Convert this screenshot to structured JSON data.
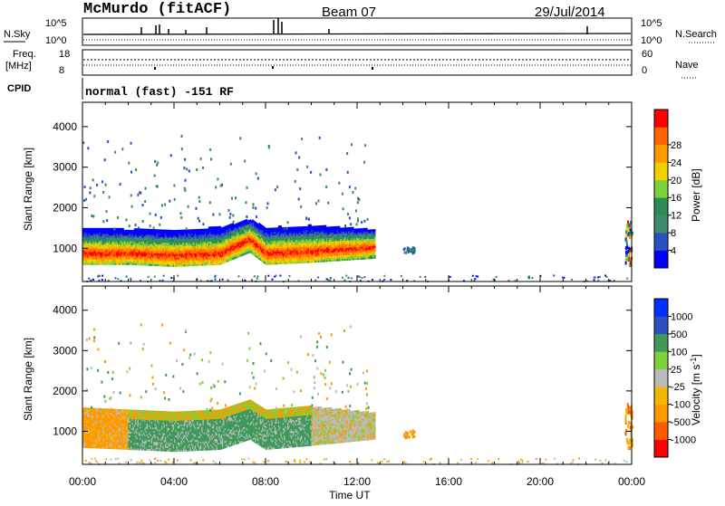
{
  "header": {
    "station": "McMurdo (fitACF)",
    "beam": "Beam 07",
    "date": "29/Jul/2014"
  },
  "top_panel": {
    "left_label": "N.Sky",
    "right_label": "N.Search",
    "left_ticks": [
      "10^5",
      "10^0"
    ],
    "right_ticks": [
      "10^5",
      "10^0"
    ]
  },
  "freq_panel": {
    "left_label_1": "Freq.",
    "left_label_2": "[MHz]",
    "left_ticks": [
      "18",
      "8"
    ],
    "right_label": "Nave",
    "right_ticks": [
      "60",
      "0"
    ]
  },
  "cpid": {
    "label": "CPID",
    "value": "normal (fast) -151 RF"
  },
  "axes": {
    "ylabel": "Slant Range [km]",
    "xlabel": "Time UT",
    "y_ticks": [
      "1000",
      "2000",
      "3000",
      "4000"
    ],
    "x_ticks": [
      "00:00",
      "04:00",
      "08:00",
      "12:00",
      "16:00",
      "20:00",
      "00:00"
    ]
  },
  "colors": {
    "power": [
      "#0000ff",
      "#2a4fbf",
      "#3f8a6a",
      "#2e8b57",
      "#7dd13a",
      "#f2d000",
      "#ff9900",
      "#ff6600",
      "#ff0000"
    ],
    "velocity": [
      "#ff0000",
      "#ff5a00",
      "#ff9900",
      "#f2b800",
      "#bbbbbb",
      "#7dd13a",
      "#3f9a5a",
      "#2a4fbf",
      "#0030ff"
    ]
  },
  "chart_data": [
    {
      "type": "heatmap",
      "panel": "power",
      "x_range_hours": [
        0,
        24
      ],
      "y_range_km": [
        180,
        4600
      ],
      "colorbar": {
        "label": "Power [dB]",
        "ticks": [
          "4",
          "8",
          "12",
          "16",
          "20",
          "24",
          "28"
        ],
        "range": [
          0,
          30
        ]
      },
      "main_band": [
        {
          "t": 0.0,
          "low": 600,
          "high": 1500,
          "peak": 850
        },
        {
          "t": 2.0,
          "low": 600,
          "high": 1450,
          "peak": 850
        },
        {
          "t": 4.0,
          "low": 550,
          "high": 1450,
          "peak": 800
        },
        {
          "t": 6.0,
          "low": 600,
          "high": 1500,
          "peak": 850
        },
        {
          "t": 7.3,
          "low": 900,
          "high": 1700,
          "peak": 1200
        },
        {
          "t": 8.0,
          "low": 600,
          "high": 1500,
          "peak": 850
        },
        {
          "t": 10.0,
          "low": 650,
          "high": 1550,
          "peak": 900
        },
        {
          "t": 12.7,
          "low": 750,
          "high": 1450,
          "peak": 1000
        }
      ]
    },
    {
      "type": "heatmap",
      "panel": "velocity",
      "x_range_hours": [
        0,
        24
      ],
      "y_range_km": [
        180,
        4600
      ],
      "colorbar": {
        "label": "Velocity [m s^-1]",
        "ticks": [
          "-1000",
          "-500",
          "-100",
          "-25",
          "25",
          "100",
          "500",
          "1000"
        ]
      },
      "main_band": [
        {
          "t": 0.0,
          "low": 600,
          "high": 1550
        },
        {
          "t": 2.0,
          "low": 550,
          "high": 1500
        },
        {
          "t": 4.0,
          "low": 500,
          "high": 1450
        },
        {
          "t": 6.0,
          "low": 550,
          "high": 1500
        },
        {
          "t": 7.3,
          "low": 800,
          "high": 1750
        },
        {
          "t": 8.0,
          "low": 550,
          "high": 1500
        },
        {
          "t": 10.0,
          "low": 650,
          "high": 1600
        },
        {
          "t": 12.7,
          "low": 800,
          "high": 1450
        }
      ]
    }
  ]
}
